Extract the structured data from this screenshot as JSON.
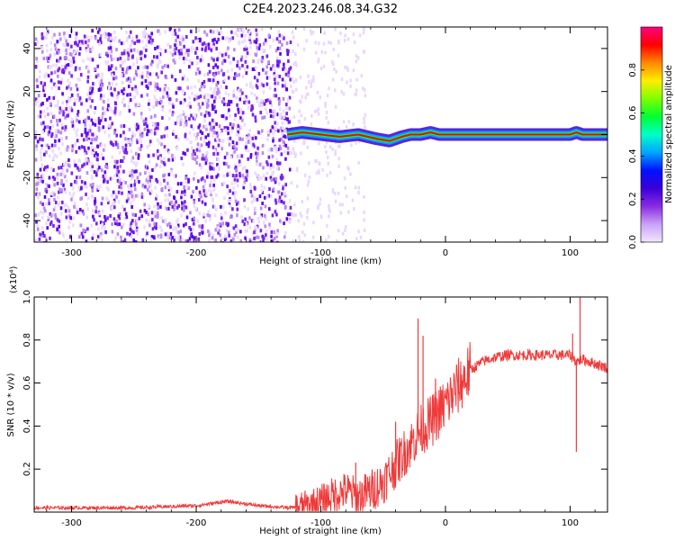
{
  "title": "C2E4.2023.246.08.34.G32",
  "chart_data": [
    {
      "type": "heatmap",
      "xlabel": "Height of straight line (km)",
      "ylabel": "Frequency (Hz)",
      "xlim": [
        -330,
        130
      ],
      "ylim": [
        -50,
        50
      ],
      "xticks": [
        -300,
        -200,
        -100,
        0,
        100
      ],
      "yticks": [
        -40,
        -20,
        0,
        20,
        40
      ],
      "colorbar": {
        "label": "Normalized spectral amplitude",
        "range": [
          0.0,
          1.0
        ],
        "ticks": [
          "0.0",
          "0.2",
          "0.4",
          "0.6",
          "0.8"
        ],
        "colors": [
          "#f2e6ff",
          "#c9a2f5",
          "#8a2be2",
          "#3a00d9",
          "#0011ff",
          "#00a6ff",
          "#00ffc8",
          "#00ff33",
          "#7dff00",
          "#ffee00",
          "#ff8800",
          "#ff0000",
          "#ff0080"
        ]
      },
      "signal_trace": {
        "x": [
          -127,
          -115,
          -100,
          -85,
          -70,
          -55,
          -45,
          -35,
          -28,
          -20,
          -12,
          -5,
          0,
          50,
          100,
          105,
          110,
          130
        ],
        "y": [
          0,
          1,
          0,
          -1,
          0,
          -2,
          -3,
          -1,
          0,
          0,
          1,
          0,
          0,
          0,
          0,
          1,
          0,
          0
        ]
      },
      "noise_region_x": [
        -330,
        -125
      ],
      "grid": false
    },
    {
      "type": "line",
      "xlabel": "Height of straight line (km)",
      "ylabel": "SNR (10 * v/v)",
      "scale_label": "(x10⁴)",
      "xlim": [
        -330,
        130
      ],
      "ylim": [
        0,
        1.0
      ],
      "xticks": [
        -300,
        -200,
        -100,
        0,
        100
      ],
      "yticks": [
        0.2,
        0.4,
        0.6,
        0.8,
        1.0
      ],
      "series": [
        {
          "color": "#f03a3a",
          "x": [
            -330,
            -300,
            -250,
            -200,
            -175,
            -150,
            -125,
            -110,
            -100,
            -90,
            -80,
            -70,
            -60,
            -50,
            -40,
            -30,
            -20,
            -10,
            0,
            10,
            20,
            30,
            40,
            50,
            70,
            90,
            100,
            105,
            110,
            120,
            130
          ],
          "y": [
            0.02,
            0.02,
            0.02,
            0.03,
            0.05,
            0.03,
            0.02,
            0.03,
            0.05,
            0.08,
            0.1,
            0.07,
            0.1,
            0.14,
            0.22,
            0.3,
            0.38,
            0.43,
            0.5,
            0.58,
            0.66,
            0.7,
            0.72,
            0.73,
            0.73,
            0.73,
            0.73,
            0.7,
            0.71,
            0.69,
            0.67
          ]
        }
      ],
      "spikes": [
        {
          "x": -72,
          "y": 0.23
        },
        {
          "x": -40,
          "y": 0.42
        },
        {
          "x": -22,
          "y": 0.9
        },
        {
          "x": -18,
          "y": 0.82
        },
        {
          "x": -8,
          "y": 0.62
        },
        {
          "x": 102,
          "y": 0.83
        },
        {
          "x": 105,
          "y": 0.28
        },
        {
          "x": 108,
          "y": 1.0
        }
      ],
      "grid": false
    }
  ]
}
